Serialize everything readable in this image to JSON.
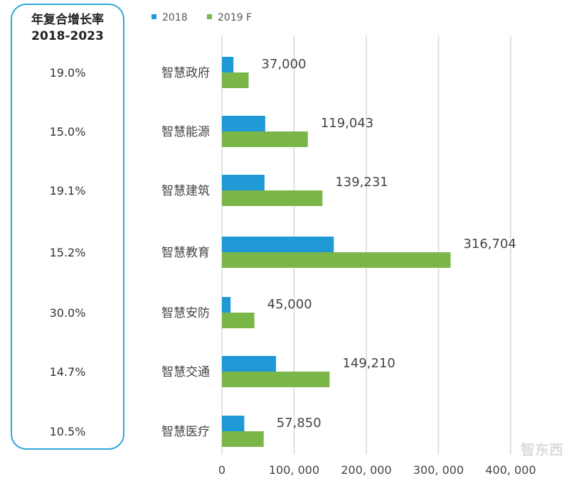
{
  "cagr": {
    "title_line1": "年复合增长率",
    "title_line2": "2018-2023",
    "values": [
      "19.0%",
      "15.0%",
      "19.1%",
      "15.2%",
      "30.0%",
      "14.7%",
      "10.5%"
    ]
  },
  "logo_text": "智东西",
  "chart_data": {
    "type": "bar",
    "orientation": "horizontal",
    "categories": [
      "智慧政府",
      "智慧能源",
      "智慧建筑",
      "智慧教育",
      "智慧安防",
      "智慧交通",
      "智慧医疗"
    ],
    "series": [
      {
        "name": "2018",
        "color": "#1f9ad6",
        "values": [
          16000,
          60000,
          59000,
          155000,
          12000,
          75000,
          31000
        ]
      },
      {
        "name": "2019 F",
        "color": "#7ab648",
        "values": [
          37000,
          119043,
          139231,
          316704,
          45000,
          149210,
          57850
        ]
      }
    ],
    "data_labels": [
      "37,000",
      "119,043",
      "139,231",
      "316,704",
      "45,000",
      "149,210",
      "57,850"
    ],
    "xlim": [
      0,
      400000
    ],
    "xticks": [
      0,
      100000,
      200000,
      300000,
      400000
    ],
    "xtick_labels": [
      "0",
      "100, 000",
      "200, 000",
      "300, 000",
      "400, 000"
    ],
    "grid": true,
    "legend_position": "top-left",
    "title": "",
    "xlabel": "",
    "ylabel": ""
  }
}
